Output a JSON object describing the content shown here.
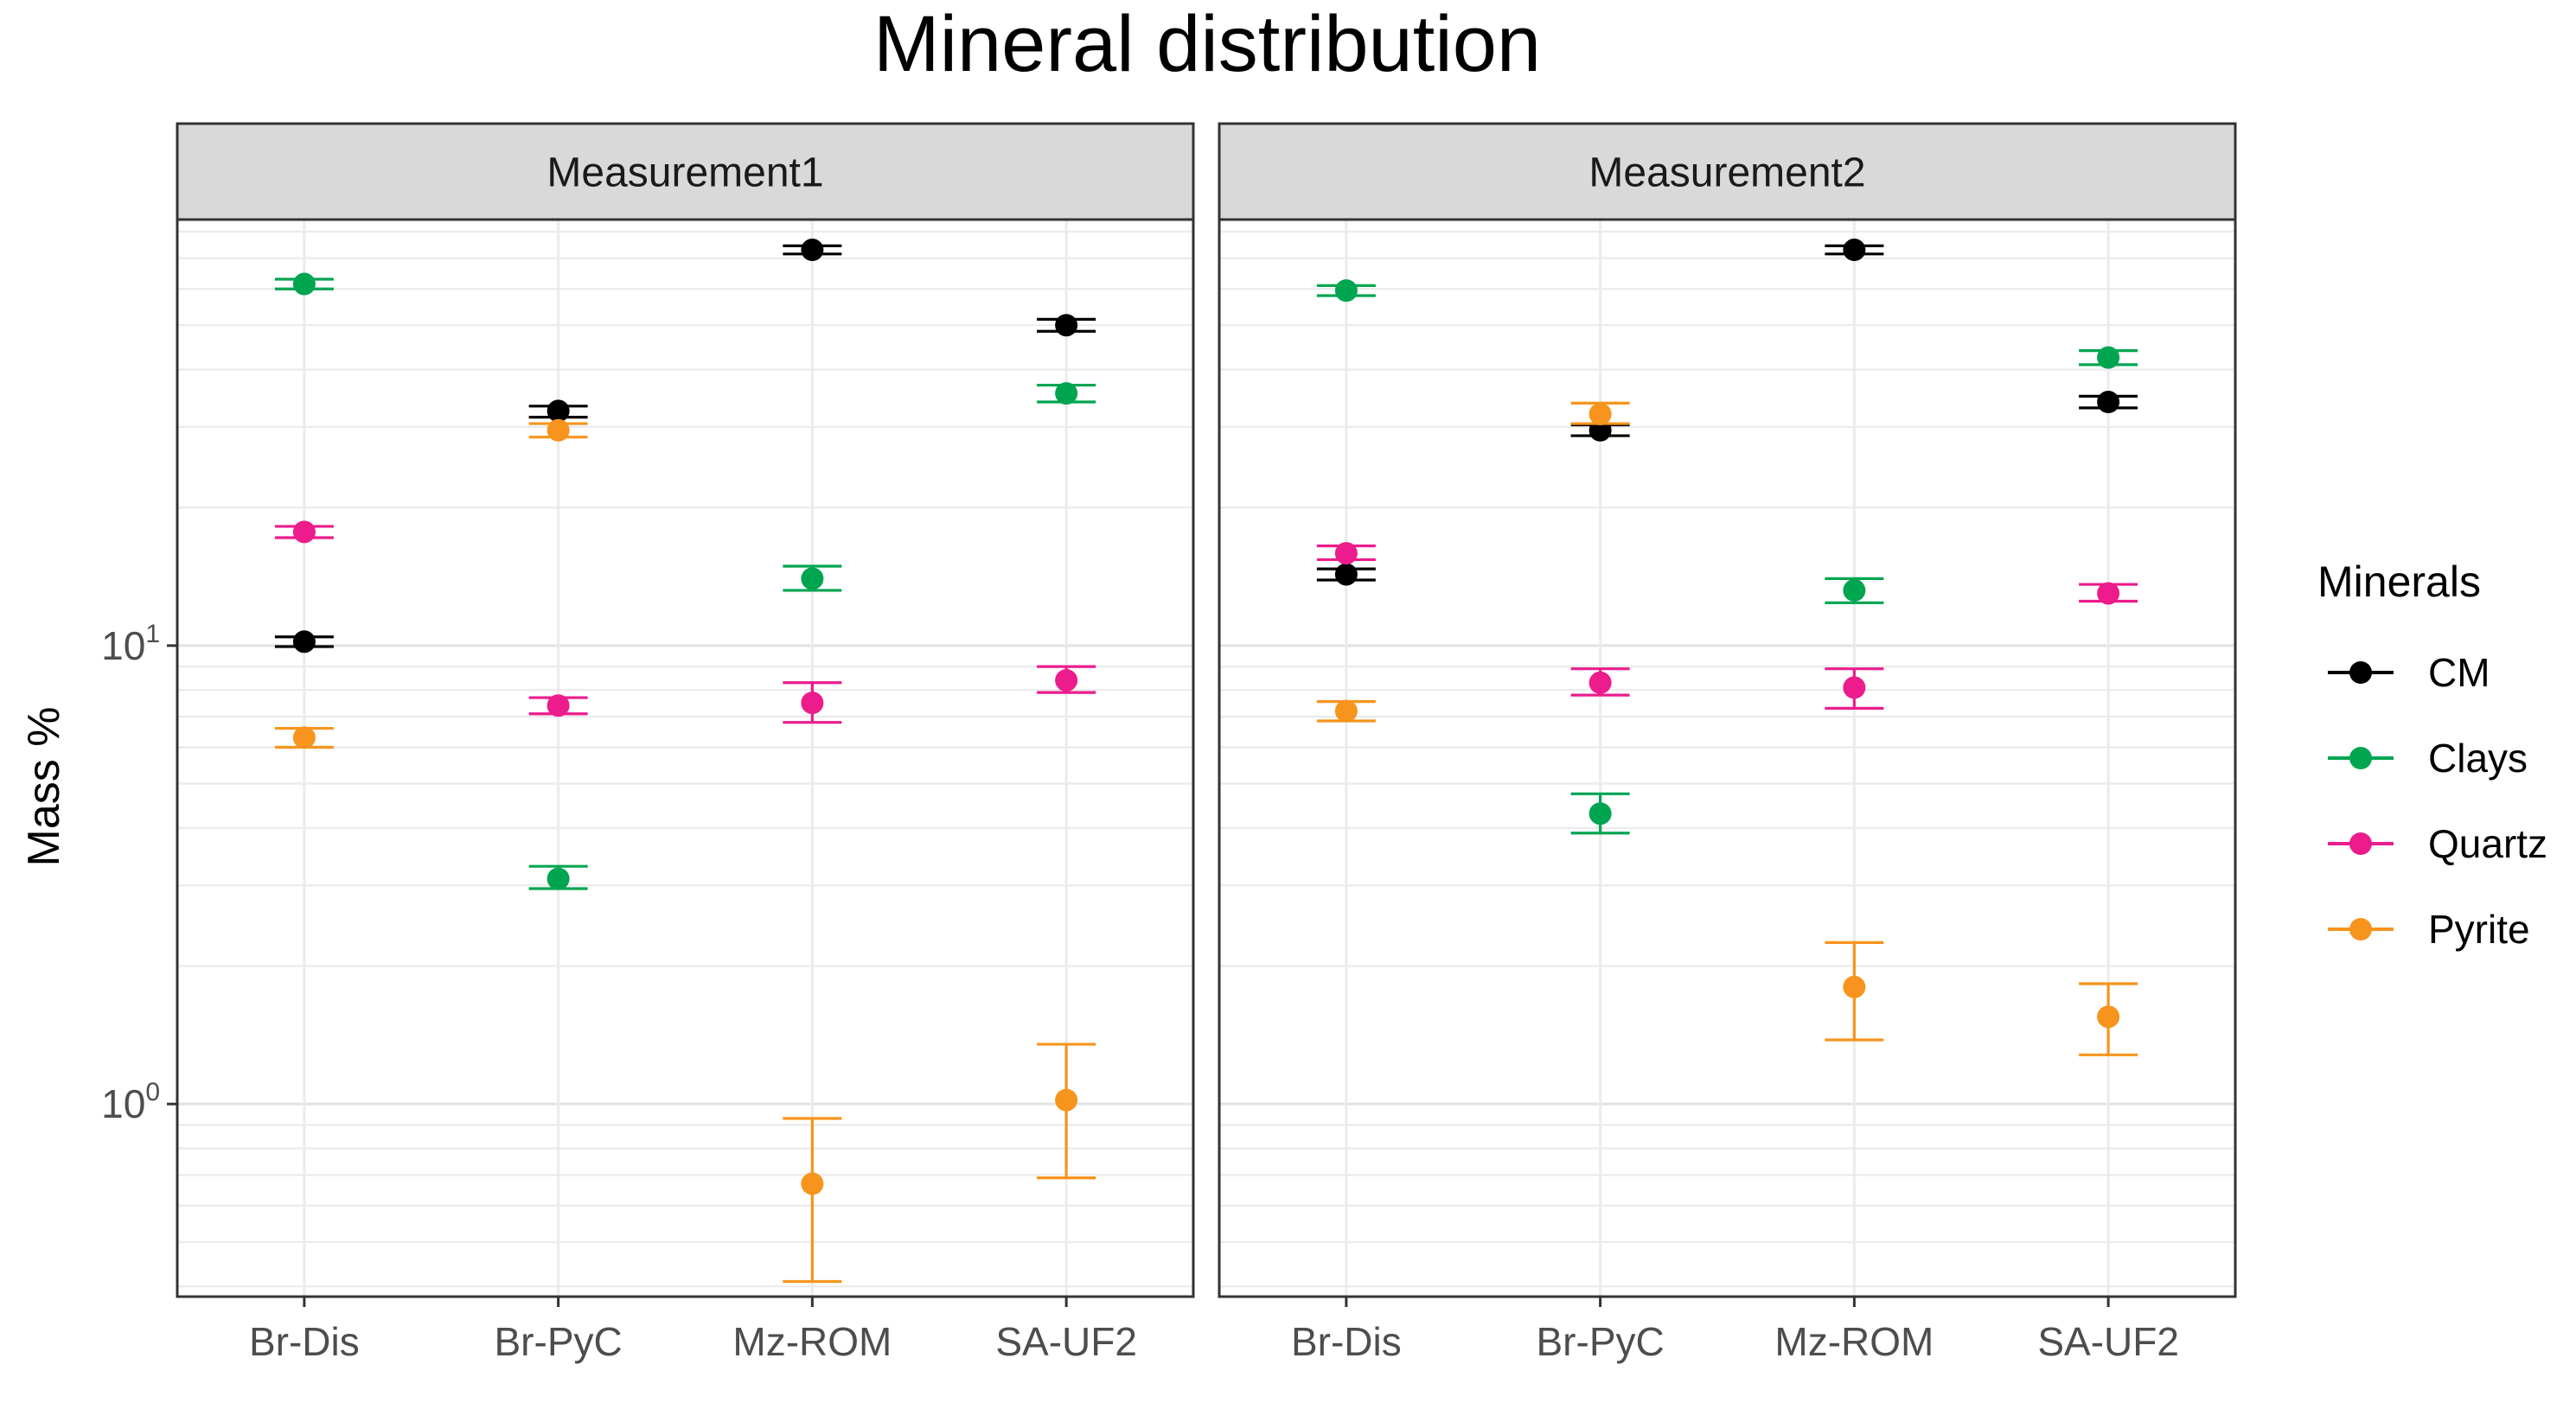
{
  "chart_data": {
    "type": "scatter",
    "subtype": "point-with-errorbars, faceted",
    "title": "Mineral distribution",
    "ylabel": "Mass %",
    "xlabel": "",
    "y_scale": "log10",
    "ylim": [
      0.38,
      85
    ],
    "y_ticks": [
      {
        "base": "10",
        "exp": "0",
        "value": 1
      },
      {
        "base": "10",
        "exp": "1",
        "value": 10
      }
    ],
    "categories": [
      "Br-Dis",
      "Br-PyC",
      "Mz-ROM",
      "SA-UF2"
    ],
    "legend": {
      "title": "Minerals",
      "position": "right"
    },
    "series_colors": {
      "CM": "#000000",
      "Clays": "#00A550",
      "Quartz": "#EC1C8C",
      "Pyrite": "#F7941D"
    },
    "facets": [
      {
        "name": "Measurement1",
        "series": [
          {
            "name": "CM",
            "points": [
              {
                "category": "Br-Dis",
                "value": 10.2,
                "low": 9.95,
                "high": 10.45
              },
              {
                "category": "Br-PyC",
                "value": 32.5,
                "low": 31.5,
                "high": 33.3
              },
              {
                "category": "Mz-ROM",
                "value": 73.0,
                "low": 71.5,
                "high": 74.5
              },
              {
                "category": "SA-UF2",
                "value": 50.0,
                "low": 48.5,
                "high": 51.5
              }
            ]
          },
          {
            "name": "Clays",
            "points": [
              {
                "category": "Br-Dis",
                "value": 61.5,
                "low": 60.0,
                "high": 63.0
              },
              {
                "category": "Br-PyC",
                "value": 3.1,
                "low": 2.95,
                "high": 3.3
              },
              {
                "category": "Mz-ROM",
                "value": 14.0,
                "low": 13.2,
                "high": 14.9
              },
              {
                "category": "SA-UF2",
                "value": 35.5,
                "low": 34.0,
                "high": 37.0
              }
            ]
          },
          {
            "name": "Quartz",
            "points": [
              {
                "category": "Br-Dis",
                "value": 17.7,
                "low": 17.2,
                "high": 18.2
              },
              {
                "category": "Br-PyC",
                "value": 7.4,
                "low": 7.1,
                "high": 7.7
              },
              {
                "category": "Mz-ROM",
                "value": 7.5,
                "low": 6.8,
                "high": 8.3
              },
              {
                "category": "SA-UF2",
                "value": 8.4,
                "low": 7.9,
                "high": 9.0
              }
            ]
          },
          {
            "name": "Pyrite",
            "points": [
              {
                "category": "Br-Dis",
                "value": 6.3,
                "low": 6.0,
                "high": 6.6
              },
              {
                "category": "Br-PyC",
                "value": 29.5,
                "low": 28.5,
                "high": 30.5
              },
              {
                "category": "Mz-ROM",
                "value": 0.67,
                "low": 0.41,
                "high": 0.93
              },
              {
                "category": "SA-UF2",
                "value": 1.02,
                "low": 0.69,
                "high": 1.35
              }
            ]
          }
        ]
      },
      {
        "name": "Measurement2",
        "series": [
          {
            "name": "CM",
            "points": [
              {
                "category": "Br-Dis",
                "value": 14.3,
                "low": 13.9,
                "high": 14.7
              },
              {
                "category": "Br-PyC",
                "value": 29.5,
                "low": 28.7,
                "high": 30.3
              },
              {
                "category": "Mz-ROM",
                "value": 73.0,
                "low": 71.5,
                "high": 74.5
              },
              {
                "category": "SA-UF2",
                "value": 34.0,
                "low": 33.0,
                "high": 35.0
              }
            ]
          },
          {
            "name": "Clays",
            "points": [
              {
                "category": "Br-Dis",
                "value": 59.5,
                "low": 58.0,
                "high": 61.0
              },
              {
                "category": "Br-PyC",
                "value": 4.3,
                "low": 3.9,
                "high": 4.75
              },
              {
                "category": "Mz-ROM",
                "value": 13.2,
                "low": 12.4,
                "high": 14.0
              },
              {
                "category": "SA-UF2",
                "value": 42.5,
                "low": 41.0,
                "high": 44.0
              }
            ]
          },
          {
            "name": "Quartz",
            "points": [
              {
                "category": "Br-Dis",
                "value": 15.9,
                "low": 15.4,
                "high": 16.5
              },
              {
                "category": "Br-PyC",
                "value": 8.3,
                "low": 7.8,
                "high": 8.9
              },
              {
                "category": "Mz-ROM",
                "value": 8.1,
                "low": 7.3,
                "high": 8.9
              },
              {
                "category": "SA-UF2",
                "value": 13.0,
                "low": 12.5,
                "high": 13.6
              }
            ]
          },
          {
            "name": "Pyrite",
            "points": [
              {
                "category": "Br-Dis",
                "value": 7.2,
                "low": 6.85,
                "high": 7.55
              },
              {
                "category": "Br-PyC",
                "value": 32.0,
                "low": 30.5,
                "high": 33.8
              },
              {
                "category": "Mz-ROM",
                "value": 1.8,
                "low": 1.38,
                "high": 2.25
              },
              {
                "category": "SA-UF2",
                "value": 1.55,
                "low": 1.28,
                "high": 1.83
              }
            ]
          }
        ]
      }
    ]
  }
}
